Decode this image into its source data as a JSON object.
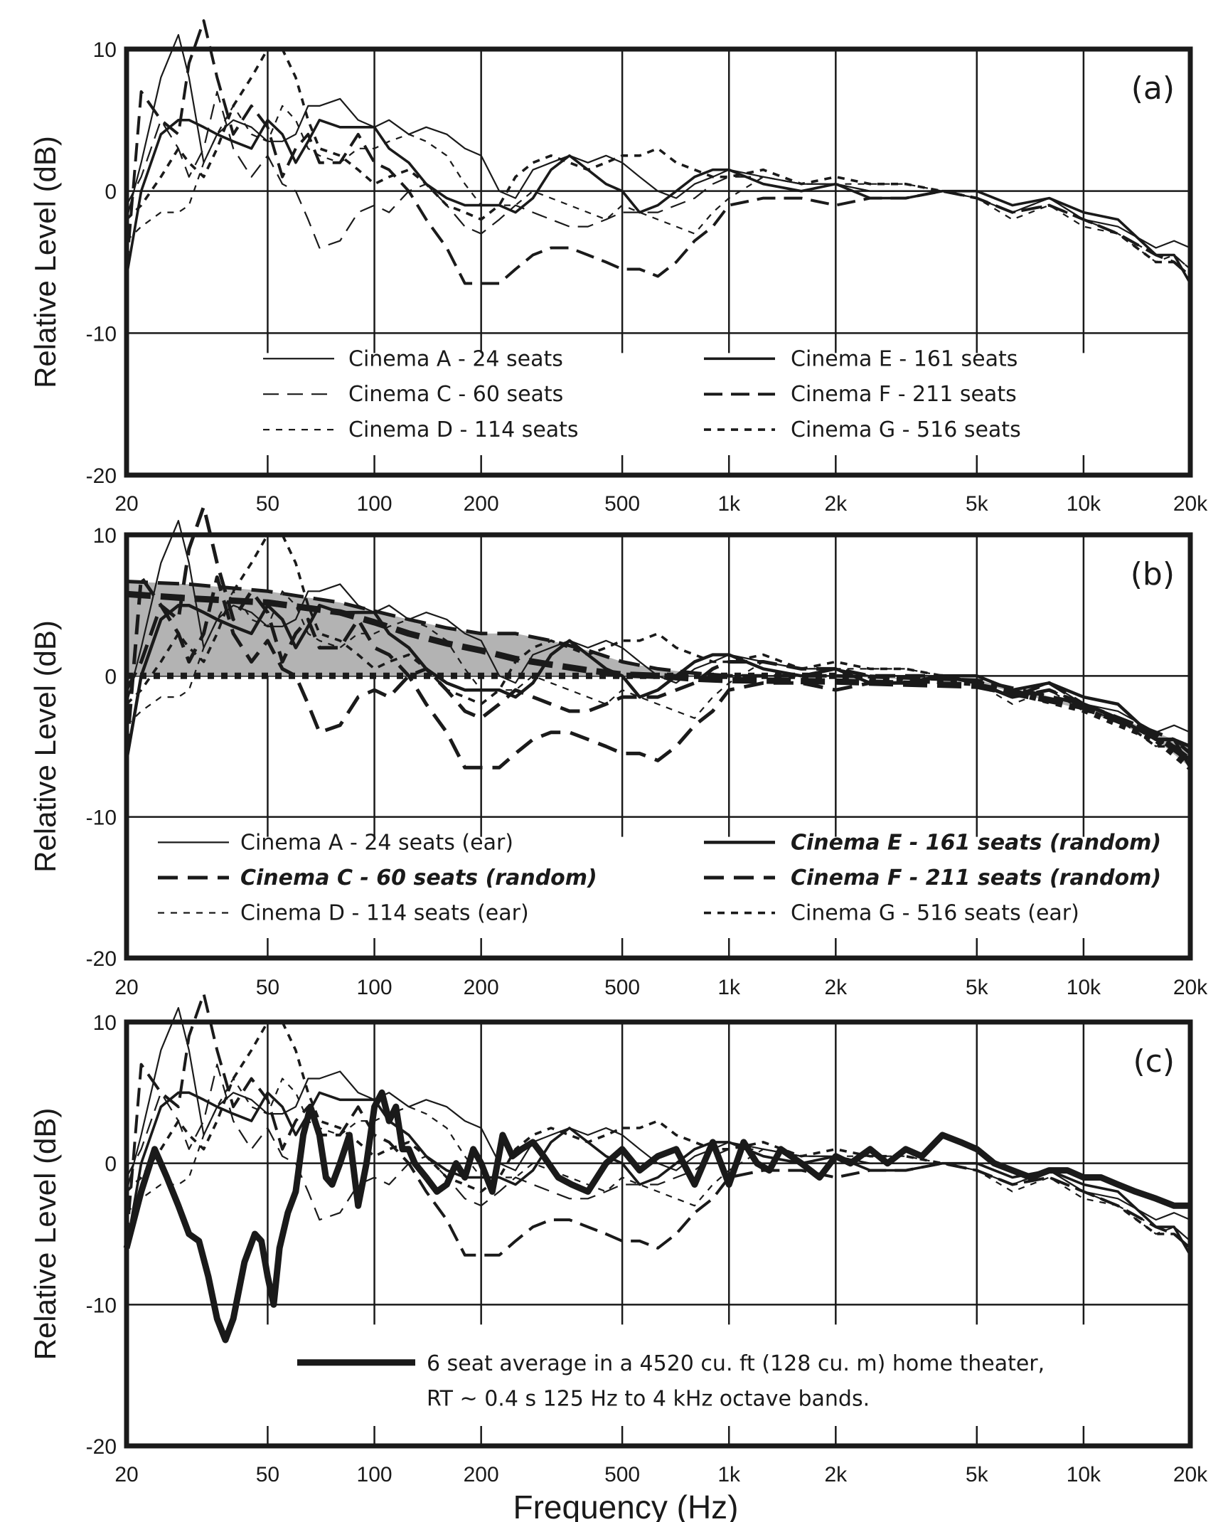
{
  "chart_data": {
    "type": "line",
    "xscale": "log",
    "xlabel": "Frequency (Hz)",
    "ylabel": "Relative Level (dB)",
    "xlim": [
      20,
      20000
    ],
    "ylim": [
      -20,
      10
    ],
    "grid": true,
    "x_ticks": [
      {
        "value": 20,
        "label": "20"
      },
      {
        "value": 50,
        "label": "50"
      },
      {
        "value": 100,
        "label": "100"
      },
      {
        "value": 200,
        "label": "200"
      },
      {
        "value": 500,
        "label": "500"
      },
      {
        "value": 1000,
        "label": "1k"
      },
      {
        "value": 2000,
        "label": "2k"
      },
      {
        "value": 5000,
        "label": "5k"
      },
      {
        "value": 10000,
        "label": "10k"
      },
      {
        "value": 20000,
        "label": "20k"
      }
    ],
    "y_ticks": [
      {
        "value": 10,
        "label": "10"
      },
      {
        "value": 0,
        "label": "0"
      },
      {
        "value": -10,
        "label": "-10"
      },
      {
        "value": -20,
        "label": "-20"
      }
    ],
    "x": [
      20,
      22,
      25,
      28,
      30,
      33,
      36,
      40,
      45,
      50,
      55,
      60,
      65,
      70,
      80,
      90,
      100,
      110,
      125,
      140,
      160,
      180,
      200,
      225,
      250,
      280,
      315,
      355,
      400,
      450,
      500,
      560,
      630,
      710,
      800,
      900,
      1000,
      1250,
      1600,
      2000,
      2500,
      3150,
      4000,
      5000,
      6300,
      8000,
      10000,
      12500,
      16000,
      18000,
      20000
    ],
    "series": {
      "A": {
        "name": "Cinema A - 24 seats",
        "style": "thin-solid",
        "values": [
          -2,
          2,
          8,
          11,
          8,
          2,
          4,
          5,
          4.5,
          3.5,
          3.5,
          4,
          6,
          6,
          6.5,
          5,
          4.5,
          5,
          4,
          4.5,
          4,
          3,
          2.5,
          0,
          -0.5,
          1.5,
          2,
          2.5,
          2,
          2.5,
          2,
          1,
          0,
          -0.5,
          0.5,
          1,
          1.5,
          1,
          0.5,
          0.5,
          0,
          0,
          0,
          -0.5,
          -1.5,
          -0.5,
          -2,
          -2.5,
          -4,
          -3.5,
          -4
        ]
      },
      "C": {
        "name": "Cinema C - 60 seats",
        "style": "thin-dash",
        "values": [
          -1,
          1,
          5,
          3,
          1,
          3,
          7,
          3,
          1,
          2.5,
          0.5,
          0,
          -2,
          -4,
          -3.5,
          -1.5,
          -1,
          -1.5,
          0,
          0.5,
          -1,
          -2.5,
          -3,
          -2,
          -1,
          -1.5,
          -2,
          -2.5,
          -2.5,
          -2,
          -1.5,
          -1.5,
          -1.5,
          -1,
          -0.5,
          0.5,
          1,
          1,
          0.5,
          0.5,
          0,
          0,
          0,
          -0.5,
          -1.5,
          -0.5,
          -2,
          -3,
          -4.5,
          -4.5,
          -5.5
        ]
      },
      "D": {
        "name": "Cinema D - 114 seats",
        "style": "thin-shortdash",
        "values": [
          -3.5,
          -2.5,
          -1.5,
          -1.5,
          -1,
          2,
          4,
          6,
          4,
          3.5,
          6,
          5,
          3,
          2.5,
          2,
          3,
          3,
          3.5,
          4,
          3.5,
          2.5,
          0.5,
          -1,
          -1,
          -1,
          0,
          -0.5,
          -1,
          -1.5,
          -2,
          -1,
          -1.5,
          -2,
          -2.5,
          -3,
          -1.5,
          -0.5,
          1,
          0.5,
          0.5,
          0.5,
          0.5,
          0,
          -0.5,
          -2,
          -1,
          -2.5,
          -3,
          -5,
          -4.5,
          -5.5
        ]
      },
      "E": {
        "name": "Cinema E - 161 seats",
        "style": "medium-solid",
        "values": [
          -6,
          0,
          4,
          5,
          5,
          4.5,
          4,
          3.5,
          3,
          5,
          4,
          2,
          3.5,
          5,
          4.5,
          4.5,
          4.5,
          3,
          2,
          0.5,
          -0.5,
          -1,
          -1,
          -1,
          -1.5,
          -0.5,
          1.5,
          2.5,
          1.5,
          0.5,
          0,
          -1.5,
          -1,
          0,
          1,
          1.5,
          1.5,
          0.5,
          0,
          0.5,
          -0.5,
          -0.5,
          0,
          0,
          -1,
          -0.5,
          -1.5,
          -2,
          -4.5,
          -4.5,
          -6.5
        ]
      },
      "F": {
        "name": "Cinema F - 211 seats",
        "style": "medium-dash",
        "values": [
          -5.5,
          7,
          5,
          4,
          9,
          12,
          8,
          4,
          6,
          4.5,
          1,
          3,
          4,
          2,
          2,
          4,
          2,
          1.5,
          0,
          -2,
          -4,
          -6.5,
          -6.5,
          -6.5,
          -5.5,
          -4.5,
          -4,
          -4,
          -4.5,
          -5,
          -5.5,
          -5.5,
          -6,
          -5,
          -3.5,
          -2.5,
          -1,
          -0.5,
          -0.5,
          -1,
          -0.5,
          -0.5,
          0,
          -0.5,
          -1.5,
          -1,
          -2,
          -3,
          -4.5,
          -5,
          -6
        ]
      },
      "G": {
        "name": "Cinema G - 516 seats",
        "style": "medium-shortdash",
        "values": [
          -2,
          -1,
          1,
          3,
          2,
          1,
          3,
          6,
          8,
          10,
          10,
          8,
          5,
          3,
          2.5,
          1.5,
          0.5,
          1,
          1.5,
          0.5,
          -1,
          -1.5,
          -2,
          -1,
          1,
          2,
          2.5,
          2,
          1.5,
          2,
          2.5,
          2.5,
          3,
          2,
          1.5,
          1,
          1,
          1.5,
          0.5,
          1,
          0.5,
          0.5,
          0,
          -0.5,
          -1.5,
          -1,
          -2,
          -3,
          -5,
          -5,
          -6
        ]
      }
    },
    "home_theater": {
      "name": "6 seat average in a 4520 cu. ft (128 cu. m) home theater",
      "x": [
        20,
        22,
        24,
        26,
        28,
        30,
        32,
        34,
        36,
        38,
        40,
        43,
        46,
        48,
        50,
        52,
        54,
        57,
        60,
        63,
        66,
        70,
        73,
        76,
        80,
        85,
        90,
        95,
        100,
        105,
        110,
        115,
        120,
        125,
        130,
        140,
        150,
        160,
        170,
        180,
        190,
        200,
        215,
        230,
        245,
        260,
        280,
        300,
        330,
        360,
        400,
        450,
        500,
        560,
        630,
        710,
        800,
        900,
        1000,
        1100,
        1200,
        1300,
        1400,
        1600,
        1800,
        2000,
        2200,
        2500,
        2800,
        3150,
        3500,
        4000,
        4500,
        5000,
        5600,
        6300,
        7100,
        8000,
        9000,
        10000,
        11200,
        12500,
        14000,
        16000,
        18000,
        20000
      ],
      "values": [
        -6,
        -2,
        1,
        -1,
        -3,
        -5,
        -5.5,
        -8,
        -11,
        -12.5,
        -11,
        -7,
        -5,
        -5.5,
        -8,
        -10,
        -6,
        -3.5,
        -2,
        2,
        4,
        2,
        -1,
        -1.5,
        0,
        2,
        -3,
        0,
        4,
        5,
        3,
        4,
        1,
        1,
        0,
        -1,
        -2,
        -1.5,
        0,
        -1,
        1,
        0,
        -2,
        2,
        0.5,
        1,
        1.5,
        0.5,
        -1,
        -1.5,
        -2,
        0,
        1,
        -0.5,
        0.5,
        1,
        -1.5,
        1.5,
        -1.5,
        1.5,
        0,
        -0.5,
        1,
        0,
        -1,
        0.5,
        0,
        1,
        0,
        1,
        0.5,
        2,
        1.5,
        1,
        0,
        -0.5,
        -1,
        -0.5,
        -0.5,
        -1,
        -1,
        -1.5,
        -2,
        -2.5,
        -3,
        -3
      ]
    },
    "tolerance_band": {
      "x": [
        20,
        30,
        50,
        80,
        100,
        125,
        160,
        200,
        250,
        315,
        400,
        500,
        630,
        800,
        1000,
        2000,
        5000,
        10000,
        16000,
        20000
      ],
      "upper": [
        6.7,
        6.5,
        6.0,
        5.2,
        4.6,
        4.0,
        3.4,
        3.0,
        3.0,
        2.5,
        1.8,
        1.0,
        0.5,
        0.2,
        0,
        0,
        -0.3,
        -2,
        -4,
        -5
      ],
      "target": [
        5.8,
        5.5,
        5.2,
        4.5,
        3.8,
        3.0,
        2.3,
        1.8,
        1.2,
        0.8,
        0.4,
        0.1,
        0,
        -0.2,
        -0.3,
        -0.4,
        -0.7,
        -2.2,
        -4.2,
        -6
      ],
      "lower": [
        0,
        0,
        0,
        0,
        0,
        0,
        0,
        0,
        0,
        0,
        0,
        0,
        0,
        0,
        0,
        0,
        -0.5,
        -2.4,
        -4.5,
        -6.5
      ],
      "fill_color": "#b3b3b3"
    },
    "panels": [
      {
        "tag": "(a)",
        "legend_left": [
          {
            "series": "A",
            "label": "Cinema A - 24 seats",
            "bold": false
          },
          {
            "series": "C",
            "label": "Cinema C - 60 seats",
            "bold": false
          },
          {
            "series": "D",
            "label": "Cinema D - 114 seats",
            "bold": false
          }
        ],
        "legend_right": [
          {
            "series": "E",
            "label": "Cinema E - 161 seats",
            "bold": false
          },
          {
            "series": "F",
            "label": "Cinema F - 211 seats",
            "bold": false
          },
          {
            "series": "G",
            "label": "Cinema G - 516 seats",
            "bold": false
          }
        ]
      },
      {
        "tag": "(b)",
        "legend_left": [
          {
            "series": "A",
            "label": "Cinema A - 24 seats (ear)",
            "bold": false
          },
          {
            "series": "C",
            "label": "Cinema C - 60 seats (random)",
            "bold": true
          },
          {
            "series": "D",
            "label": "Cinema D - 114 seats (ear)",
            "bold": false
          }
        ],
        "legend_right": [
          {
            "series": "E",
            "label": "Cinema E - 161 seats (random)",
            "bold": true
          },
          {
            "series": "F",
            "label": "Cinema F - 211 seats (random)",
            "bold": true
          },
          {
            "series": "G",
            "label": "Cinema G - 516 seats (ear)",
            "bold": false
          }
        ]
      },
      {
        "tag": "(c)",
        "note_line1": "6 seat average in a 4520 cu. ft (128 cu. m) home theater,",
        "note_line2": "RT ~ 0.4 s 125 Hz to 4 kHz octave bands."
      }
    ]
  }
}
